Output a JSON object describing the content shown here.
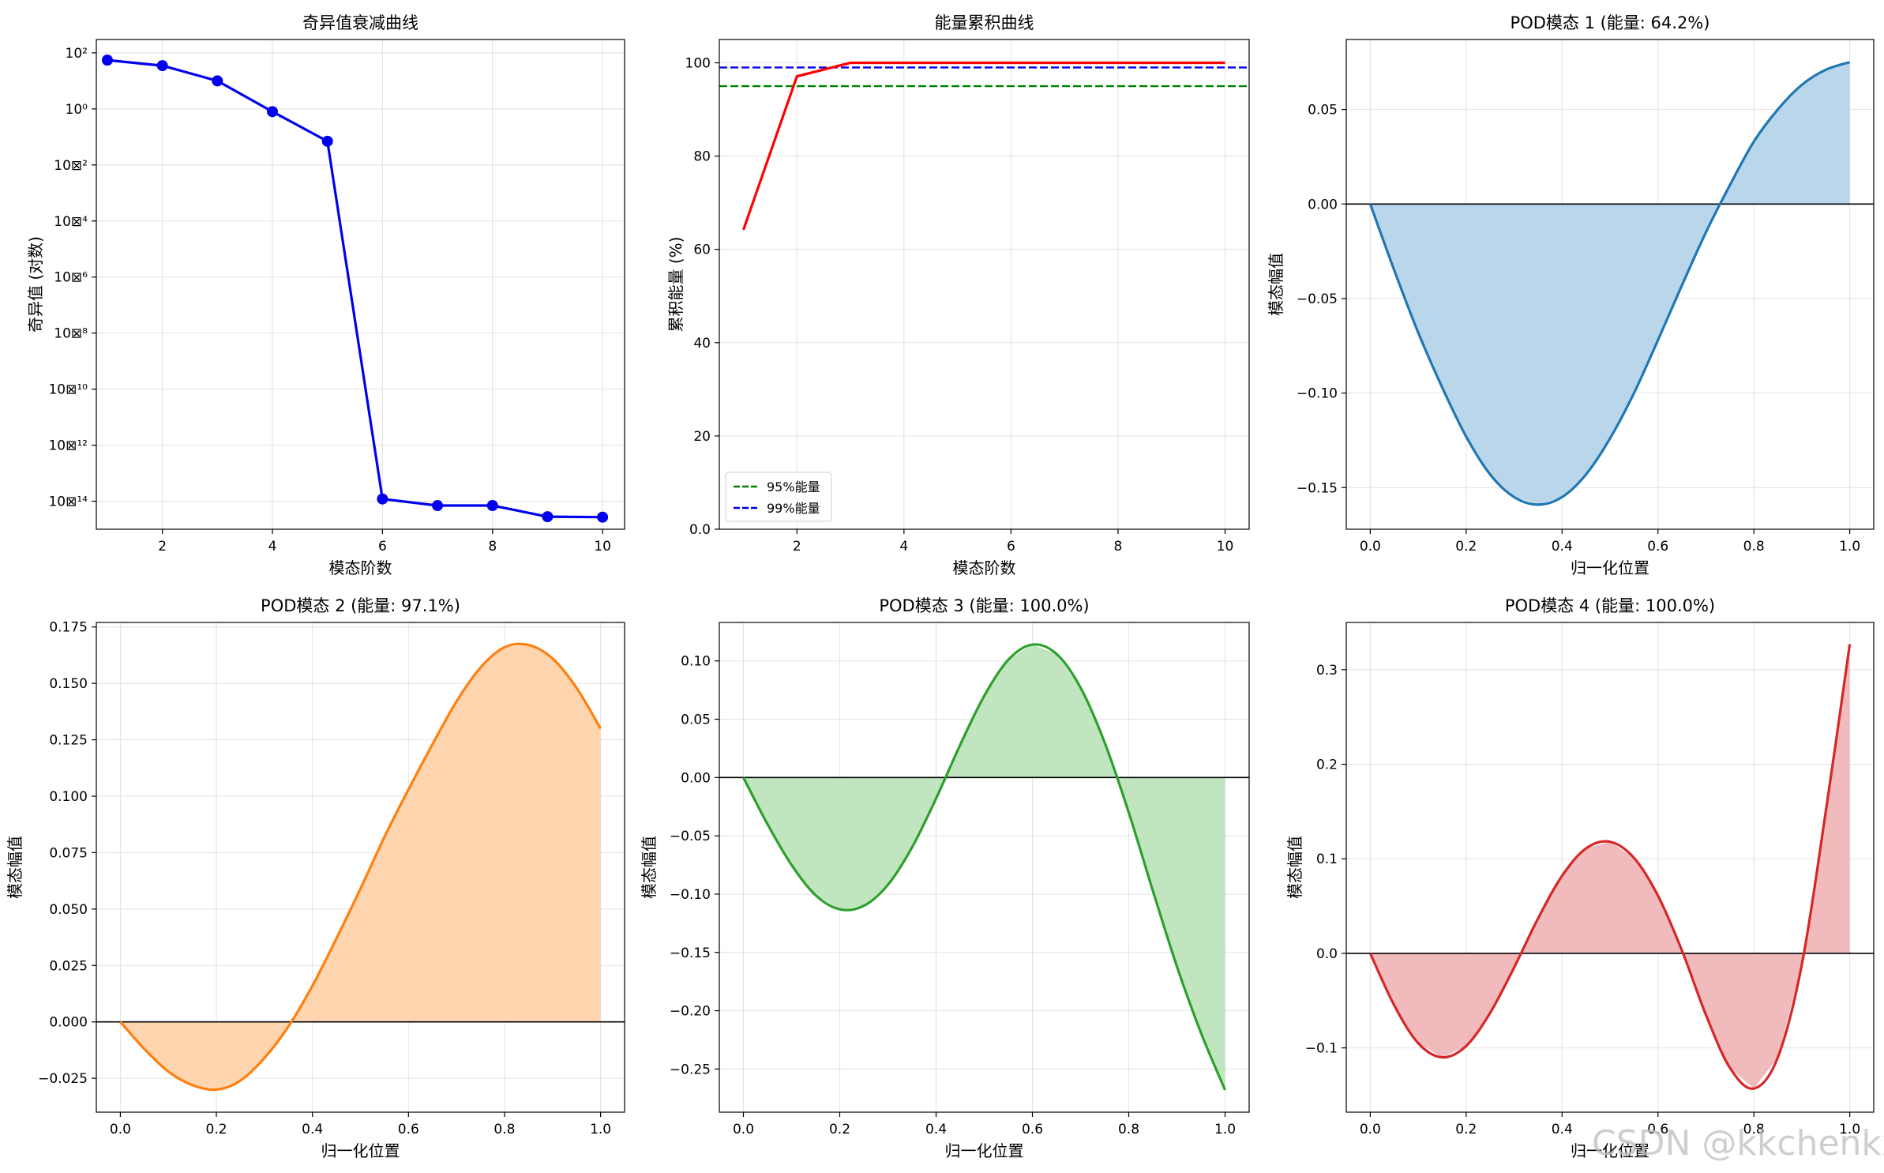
{
  "watermark": "CSDN @kkchenkx",
  "chart_data": [
    {
      "type": "line",
      "title": "奇异值衰减曲线",
      "xlabel": "模态阶数",
      "ylabel": "奇异值 (对数)",
      "yscale": "log",
      "xlim": [
        0.8,
        10.4
      ],
      "ylim": [
        1e-15,
        300
      ],
      "xticks": [
        2,
        4,
        6,
        8,
        10
      ],
      "yticks": [
        100,
        1,
        0.01,
        0.0001,
        1e-06,
        1e-08,
        1e-10,
        1e-12,
        1e-14
      ],
      "ytick_labels": [
        "10²",
        "10⁰",
        "10⊠²",
        "10⊠⁴",
        "10⊠⁶",
        "10⊠⁸",
        "10⊠¹⁰",
        "10⊠¹²",
        "10⊠¹⁴"
      ],
      "grid": true,
      "color": "#0000ee",
      "markers": true,
      "series": [
        {
          "x": [
            1,
            2,
            3,
            4,
            5,
            6,
            7,
            8,
            9,
            10
          ],
          "y": [
            55,
            35,
            10,
            0.8,
            0.07,
            1.2e-14,
            7e-15,
            7e-15,
            2.8e-15,
            2.7e-15
          ]
        }
      ]
    },
    {
      "type": "line",
      "title": "能量累积曲线",
      "xlabel": "模态阶数",
      "ylabel": "累积能量 (%)",
      "xlim": [
        0.55,
        10.45
      ],
      "ylim": [
        0,
        105
      ],
      "xticks": [
        2,
        4,
        6,
        8,
        10
      ],
      "yticks": [
        0,
        20,
        40,
        60,
        80,
        100
      ],
      "grid": true,
      "legend": "lower-left",
      "series": [
        {
          "x": [
            1,
            2,
            3,
            4,
            5,
            6,
            7,
            8,
            9,
            10
          ],
          "y": [
            64.2,
            97.1,
            100,
            100,
            100,
            100,
            100,
            100,
            100,
            100
          ],
          "color": "#ff0000"
        }
      ],
      "hlines": [
        {
          "y": 95,
          "color": "#008000",
          "label": "95%能量"
        },
        {
          "y": 99,
          "color": "#0000ee",
          "label": "99%能量"
        }
      ]
    },
    {
      "type": "area",
      "title": "POD模态 1 (能量: 64.2%)",
      "xlabel": "归一化位置",
      "ylabel": "模态幅值",
      "xlim": [
        -0.05,
        1.05
      ],
      "ylim": [
        -0.172,
        0.087
      ],
      "xticks": [
        0.0,
        0.2,
        0.4,
        0.6,
        0.8,
        1.0
      ],
      "yticks": [
        -0.15,
        -0.1,
        -0.05,
        0.0,
        0.05
      ],
      "grid": true,
      "color": "#1f77b4",
      "fill": "#bad6ea",
      "x": [
        0,
        0.05,
        0.1,
        0.15,
        0.2,
        0.25,
        0.3,
        0.35,
        0.4,
        0.45,
        0.5,
        0.55,
        0.6,
        0.65,
        0.7,
        0.75,
        0.8,
        0.85,
        0.9,
        0.95,
        1.0
      ],
      "y": [
        0,
        -0.035,
        -0.068,
        -0.097,
        -0.123,
        -0.143,
        -0.155,
        -0.159,
        -0.155,
        -0.143,
        -0.124,
        -0.1,
        -0.072,
        -0.043,
        -0.015,
        0.01,
        0.033,
        0.05,
        0.063,
        0.071,
        0.075
      ]
    },
    {
      "type": "area",
      "title": "POD模态 2 (能量: 97.1%)",
      "xlabel": "归一化位置",
      "ylabel": "模态幅值",
      "xlim": [
        -0.05,
        1.05
      ],
      "ylim": [
        -0.04,
        0.177
      ],
      "xticks": [
        0.0,
        0.2,
        0.4,
        0.6,
        0.8,
        1.0
      ],
      "yticks": [
        -0.025,
        0.0,
        0.025,
        0.05,
        0.075,
        0.1,
        0.125,
        0.15,
        0.175
      ],
      "grid": true,
      "color": "#ff7f0e",
      "fill": "#ffd5b0",
      "x": [
        0,
        0.05,
        0.1,
        0.15,
        0.2,
        0.25,
        0.3,
        0.35,
        0.4,
        0.45,
        0.5,
        0.55,
        0.6,
        0.65,
        0.7,
        0.75,
        0.8,
        0.85,
        0.9,
        0.95,
        1.0
      ],
      "y": [
        0,
        -0.012,
        -0.022,
        -0.028,
        -0.03,
        -0.026,
        -0.016,
        -0.002,
        0.016,
        0.037,
        0.059,
        0.082,
        0.103,
        0.123,
        0.142,
        0.157,
        0.166,
        0.167,
        0.161,
        0.148,
        0.13
      ]
    },
    {
      "type": "area",
      "title": "POD模态 3 (能量: 100.0%)",
      "xlabel": "归一化位置",
      "ylabel": "模态幅值",
      "xlim": [
        -0.05,
        1.05
      ],
      "ylim": [
        -0.287,
        0.133
      ],
      "xticks": [
        0.0,
        0.2,
        0.4,
        0.6,
        0.8,
        1.0
      ],
      "yticks": [
        -0.25,
        -0.2,
        -0.15,
        -0.1,
        -0.05,
        0.0,
        0.05,
        0.1
      ],
      "grid": true,
      "color": "#2ca02c",
      "fill": "#c0e5bf",
      "x": [
        0,
        0.05,
        0.1,
        0.15,
        0.2,
        0.25,
        0.3,
        0.35,
        0.4,
        0.45,
        0.5,
        0.55,
        0.6,
        0.65,
        0.7,
        0.75,
        0.8,
        0.85,
        0.9,
        0.95,
        1.0
      ],
      "y": [
        0,
        -0.04,
        -0.075,
        -0.101,
        -0.113,
        -0.11,
        -0.092,
        -0.06,
        -0.018,
        0.028,
        0.07,
        0.101,
        0.114,
        0.106,
        0.077,
        0.03,
        -0.03,
        -0.097,
        -0.162,
        -0.219,
        -0.268
      ]
    },
    {
      "type": "area",
      "title": "POD模态 4 (能量: 100.0%)",
      "xlabel": "归一化位置",
      "ylabel": "模态幅值",
      "xlim": [
        -0.05,
        1.05
      ],
      "ylim": [
        -0.168,
        0.35
      ],
      "xticks": [
        0.0,
        0.2,
        0.4,
        0.6,
        0.8,
        1.0
      ],
      "yticks": [
        -0.1,
        0.0,
        0.1,
        0.2,
        0.3
      ],
      "grid": true,
      "color": "#d62728",
      "fill": "#f1bbbd",
      "x": [
        0,
        0.05,
        0.1,
        0.15,
        0.2,
        0.25,
        0.3,
        0.35,
        0.4,
        0.45,
        0.5,
        0.55,
        0.6,
        0.65,
        0.7,
        0.75,
        0.8,
        0.85,
        0.9,
        0.95,
        1.0
      ],
      "y": [
        0,
        -0.055,
        -0.095,
        -0.11,
        -0.098,
        -0.063,
        -0.015,
        0.037,
        0.082,
        0.111,
        0.118,
        0.101,
        0.061,
        0.003,
        -0.065,
        -0.121,
        -0.143,
        -0.11,
        -0.012,
        0.15,
        0.327
      ]
    }
  ]
}
